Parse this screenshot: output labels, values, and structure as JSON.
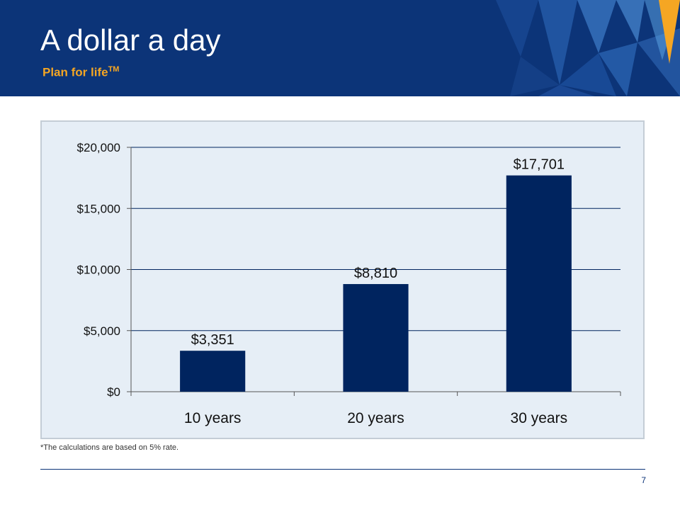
{
  "slide": {
    "title": "A dollar a day",
    "subtitle": "Plan for life",
    "subtitle_mark": "TM",
    "footnote": "*The  calculations are based on 5% rate.",
    "page_number": "7"
  },
  "colors": {
    "header_bg": "#0c3478",
    "accent": "#f5a623",
    "bar": "#00245f",
    "plot_bg": "#e6eef6"
  },
  "chart_data": {
    "type": "bar",
    "title": "",
    "xlabel": "",
    "ylabel": "",
    "categories": [
      "10 years",
      "20 years",
      "30 years"
    ],
    "values": [
      3351,
      8810,
      17701
    ],
    "data_labels": [
      "$3,351",
      "$8,810",
      "$17,701"
    ],
    "ylim": [
      0,
      20000
    ],
    "yticks": [
      0,
      5000,
      10000,
      15000,
      20000
    ],
    "ytick_labels": [
      "$0",
      "$5,000",
      "$10,000",
      "$15,000",
      "$20,000"
    ],
    "grid": true,
    "legend": "none"
  }
}
